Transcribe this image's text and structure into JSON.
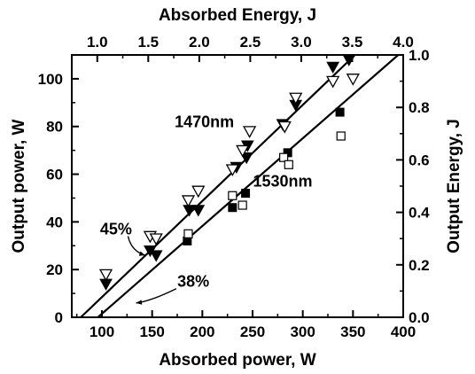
{
  "chart_data": {
    "type": "scatter",
    "title": "",
    "xlabel": "Absorbed power, W",
    "ylabel": "Output power, W",
    "x2label": "Absorbed Energy, J",
    "y2label": "Output Energy, J",
    "xlim": [
      70,
      400
    ],
    "ylim": [
      0,
      110
    ],
    "x2lim": [
      0.75,
      4.0
    ],
    "y2lim": [
      0.0,
      1.0
    ],
    "xticks": [
      "100",
      "150",
      "200",
      "250",
      "300",
      "350",
      "400"
    ],
    "yticks": [
      "0",
      "20",
      "40",
      "60",
      "80",
      "100"
    ],
    "x2ticks": [
      "1.0",
      "1.5",
      "2.0",
      "2.5",
      "3.0",
      "3.5",
      "4.0"
    ],
    "y2ticks": [
      "0.0",
      "0.2",
      "0.4",
      "0.6",
      "0.8",
      "1.0"
    ],
    "grid": false,
    "series": [
      {
        "name": "1470nm",
        "marker": "filled-triangle-down",
        "points": [
          [
            104,
            14
          ],
          [
            148,
            28
          ],
          [
            154,
            26
          ],
          [
            187,
            45
          ],
          [
            196,
            45
          ],
          [
            234,
            63
          ],
          [
            244,
            67
          ],
          [
            245,
            72
          ],
          [
            280,
            81
          ],
          [
            293,
            89
          ],
          [
            330,
            105
          ],
          [
            346,
            108
          ]
        ]
      },
      {
        "name": "1470nm-open",
        "marker": "open-triangle-down",
        "points": [
          [
            104,
            18
          ],
          [
            148,
            34
          ],
          [
            154,
            33
          ],
          [
            186,
            49
          ],
          [
            196,
            53
          ],
          [
            230,
            62
          ],
          [
            240,
            70
          ],
          [
            247,
            78
          ],
          [
            282,
            80
          ],
          [
            293,
            92
          ],
          [
            330,
            99
          ],
          [
            350,
            100
          ]
        ]
      },
      {
        "name": "1530nm",
        "marker": "filled-square",
        "points": [
          [
            185,
            32
          ],
          [
            230,
            46
          ],
          [
            243,
            52
          ],
          [
            285,
            69
          ],
          [
            337,
            86
          ]
        ]
      },
      {
        "name": "1530nm-open",
        "marker": "open-square",
        "points": [
          [
            186,
            35
          ],
          [
            230,
            51
          ],
          [
            240,
            47
          ],
          [
            281,
            67
          ],
          [
            286,
            64
          ],
          [
            338,
            76
          ]
        ]
      }
    ],
    "fit_lines": [
      {
        "label": "1470nm",
        "from": [
          79,
          0
        ],
        "to": [
          352,
          110
        ]
      },
      {
        "label": "1530nm",
        "from": [
          96,
          0
        ],
        "to": [
          395,
          110
        ]
      }
    ],
    "annotations": [
      {
        "text": "1470nm",
        "at": [
          202,
          82
        ]
      },
      {
        "text": "1530nm",
        "at": [
          280,
          57
        ]
      },
      {
        "text": "45%",
        "at": [
          114,
          37
        ]
      },
      {
        "text": "38%",
        "at": [
          191,
          15
        ]
      }
    ],
    "colors": {
      "ink": "#000000",
      "background": "#ffffff"
    }
  }
}
